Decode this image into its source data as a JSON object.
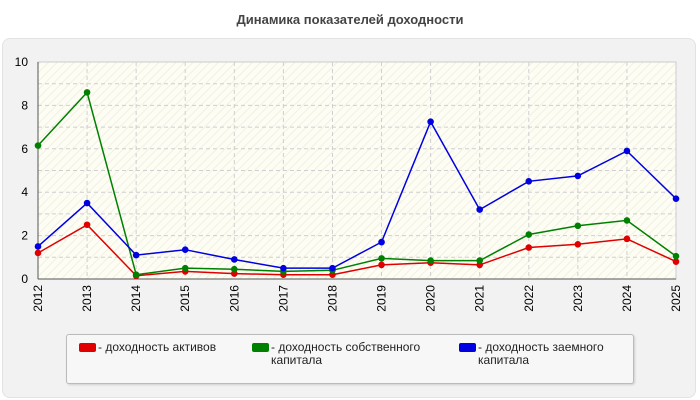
{
  "chart_data": {
    "type": "line",
    "title": "Динамика показателей доходности",
    "x": [
      "2012",
      "2013",
      "2014",
      "2015",
      "2016",
      "2017",
      "2018",
      "2019",
      "2020",
      "2021",
      "2022",
      "2023",
      "2024",
      "2025"
    ],
    "ylim": [
      0,
      10
    ],
    "yticks": [
      "0",
      "2",
      "4",
      "6",
      "8",
      "10"
    ],
    "grid": true,
    "legend_position": "bottom",
    "series": [
      {
        "name": "- доходность активов",
        "color": "#e00000",
        "values": [
          1.2,
          2.5,
          0.15,
          0.35,
          0.25,
          0.2,
          0.2,
          0.65,
          0.75,
          0.65,
          1.45,
          1.6,
          1.85,
          0.8
        ]
      },
      {
        "name": "- доходность собственного капитала",
        "color": "#008000",
        "values": [
          6.15,
          8.6,
          0.2,
          0.5,
          0.45,
          0.35,
          0.4,
          0.95,
          0.85,
          0.85,
          2.05,
          2.45,
          2.7,
          1.05
        ]
      },
      {
        "name": "- доходность заемного капитала",
        "color": "#0000e0",
        "values": [
          1.5,
          3.5,
          1.1,
          1.35,
          0.9,
          0.5,
          0.5,
          1.7,
          7.25,
          3.2,
          4.5,
          4.75,
          5.9,
          3.7
        ]
      }
    ]
  }
}
